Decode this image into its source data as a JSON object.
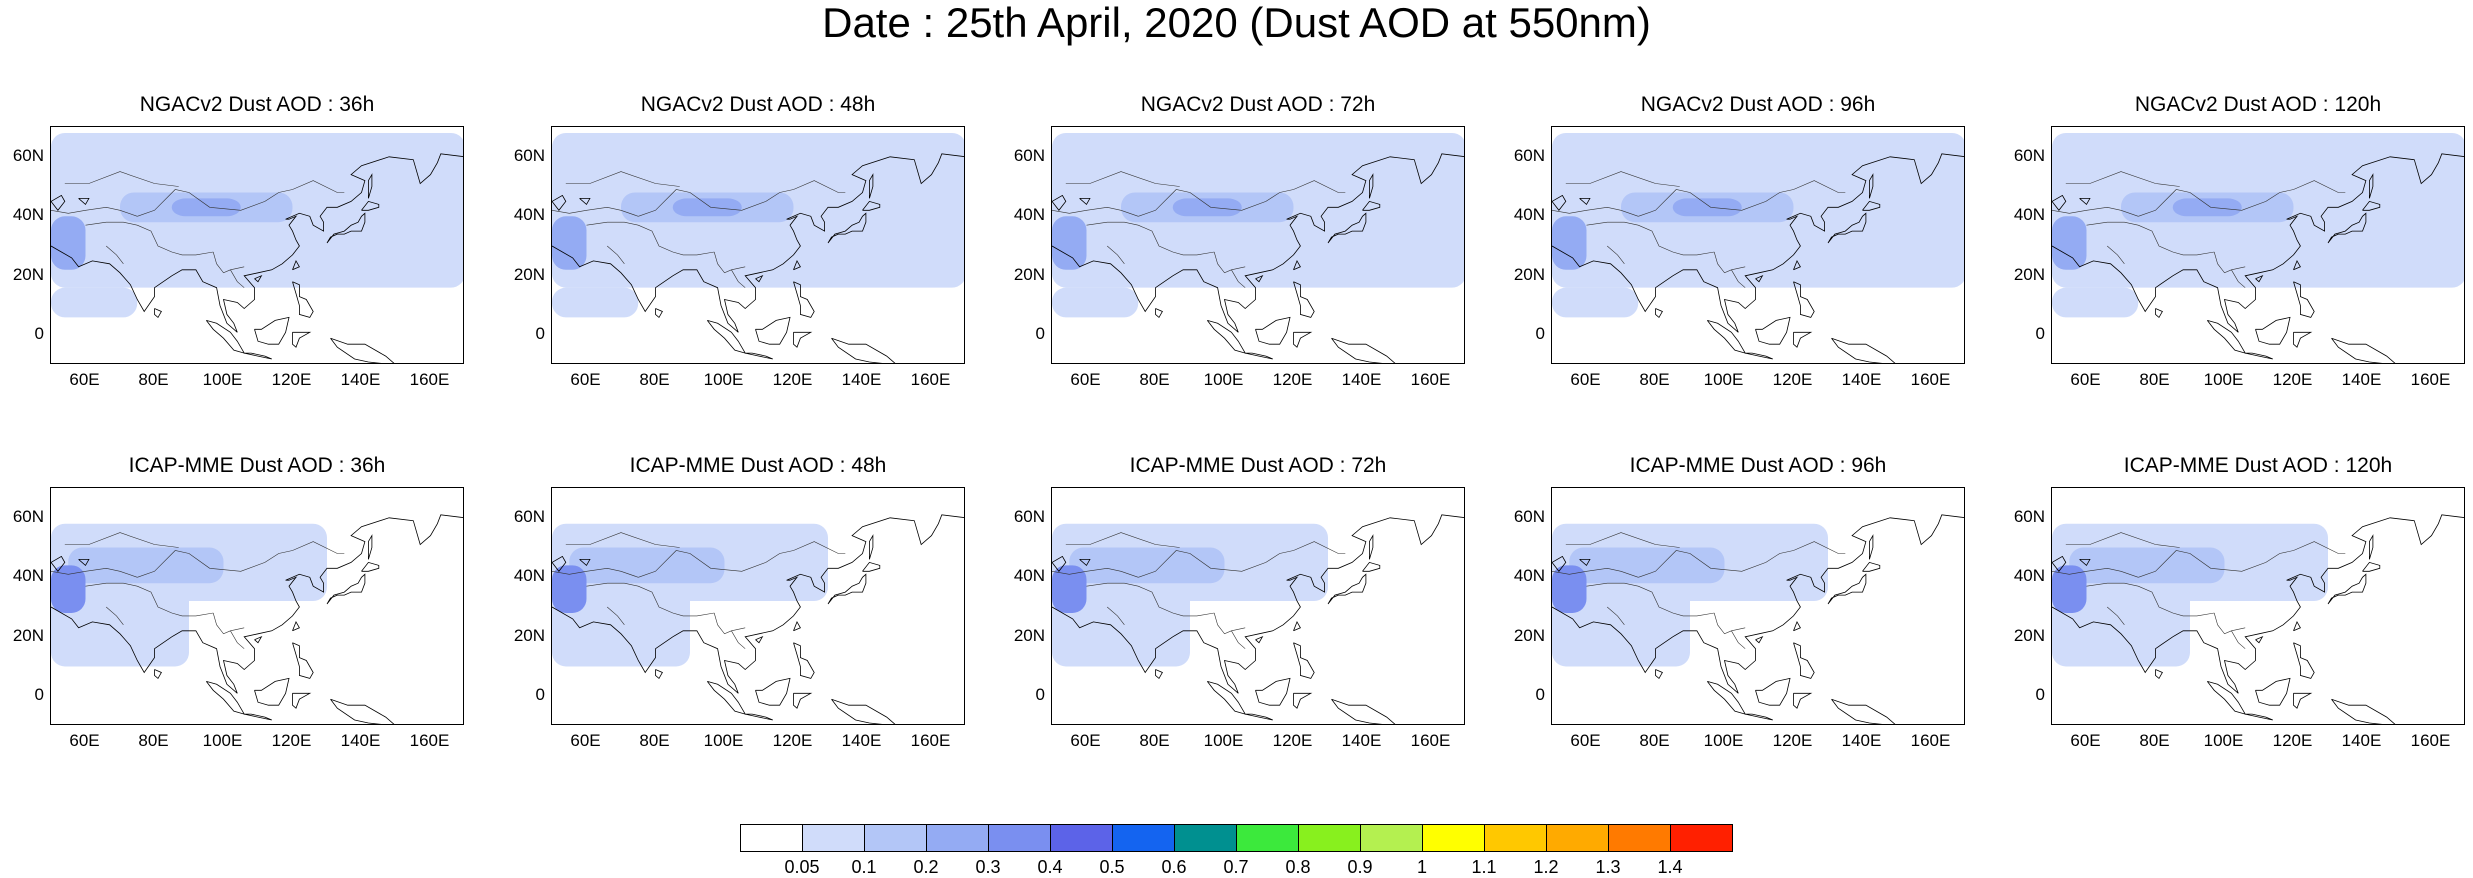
{
  "title": "Date : 25th April, 2020 (Dust AOD at 550nm)",
  "rows": [
    {
      "model": "NGACv2",
      "panels": [
        {
          "title": "NGACv2 Dust AOD : 36h",
          "forecast_hour": 36
        },
        {
          "title": "NGACv2 Dust AOD : 48h",
          "forecast_hour": 48
        },
        {
          "title": "NGACv2 Dust AOD : 72h",
          "forecast_hour": 72
        },
        {
          "title": "NGACv2 Dust AOD : 96h",
          "forecast_hour": 96
        },
        {
          "title": "NGACv2 Dust AOD : 120h",
          "forecast_hour": 120
        }
      ]
    },
    {
      "model": "ICAP-MME",
      "panels": [
        {
          "title": "ICAP-MME Dust AOD : 36h",
          "forecast_hour": 36
        },
        {
          "title": "ICAP-MME Dust AOD : 48h",
          "forecast_hour": 48
        },
        {
          "title": "ICAP-MME Dust AOD : 72h",
          "forecast_hour": 72
        },
        {
          "title": "ICAP-MME Dust AOD : 96h",
          "forecast_hour": 96
        },
        {
          "title": "ICAP-MME Dust AOD : 120h",
          "forecast_hour": 120
        }
      ]
    }
  ],
  "axes": {
    "lon_range": [
      50,
      170
    ],
    "lat_range": [
      -10,
      70
    ],
    "x_ticks": [
      "60E",
      "80E",
      "100E",
      "120E",
      "140E",
      "160E"
    ],
    "x_tick_values": [
      60,
      80,
      100,
      120,
      140,
      160
    ],
    "y_ticks": [
      "60N",
      "40N",
      "20N",
      "0"
    ],
    "y_tick_values": [
      60,
      40,
      20,
      0
    ]
  },
  "colorbar": {
    "labels": [
      "0.05",
      "0.1",
      "0.2",
      "0.3",
      "0.4",
      "0.5",
      "0.6",
      "0.7",
      "0.8",
      "0.9",
      "1",
      "1.1",
      "1.2",
      "1.3",
      "1.4"
    ],
    "colors": [
      "#ffffff",
      "#d0dcfa",
      "#b3c6f7",
      "#94abf3",
      "#7a8ff0",
      "#5c63e8",
      "#1464f0",
      "#009090",
      "#3ce93c",
      "#88f01e",
      "#b4f050",
      "#ffff00",
      "#ffc800",
      "#ffaa00",
      "#ff7a00",
      "#ff2000"
    ]
  },
  "dust_plumes": {
    "NGACv2": [
      {
        "lon": [
          50,
          170
        ],
        "lat": [
          16,
          68
        ],
        "level": 1
      },
      {
        "lon": [
          50,
          75
        ],
        "lat": [
          6,
          16
        ],
        "level": 1
      },
      {
        "lon": [
          70,
          120
        ],
        "lat": [
          38,
          48
        ],
        "level": 2
      },
      {
        "lon": [
          50,
          60
        ],
        "lat": [
          22,
          40
        ],
        "level": 3
      },
      {
        "lon": [
          85,
          105
        ],
        "lat": [
          40,
          46
        ],
        "level": 3
      }
    ],
    "ICAP-MME": [
      {
        "lon": [
          50,
          130
        ],
        "lat": [
          32,
          58
        ],
        "level": 1
      },
      {
        "lon": [
          50,
          90
        ],
        "lat": [
          10,
          40
        ],
        "level": 1
      },
      {
        "lon": [
          55,
          100
        ],
        "lat": [
          38,
          50
        ],
        "level": 2
      },
      {
        "lon": [
          50,
          60
        ],
        "lat": [
          28,
          44
        ],
        "level": 4
      }
    ]
  }
}
